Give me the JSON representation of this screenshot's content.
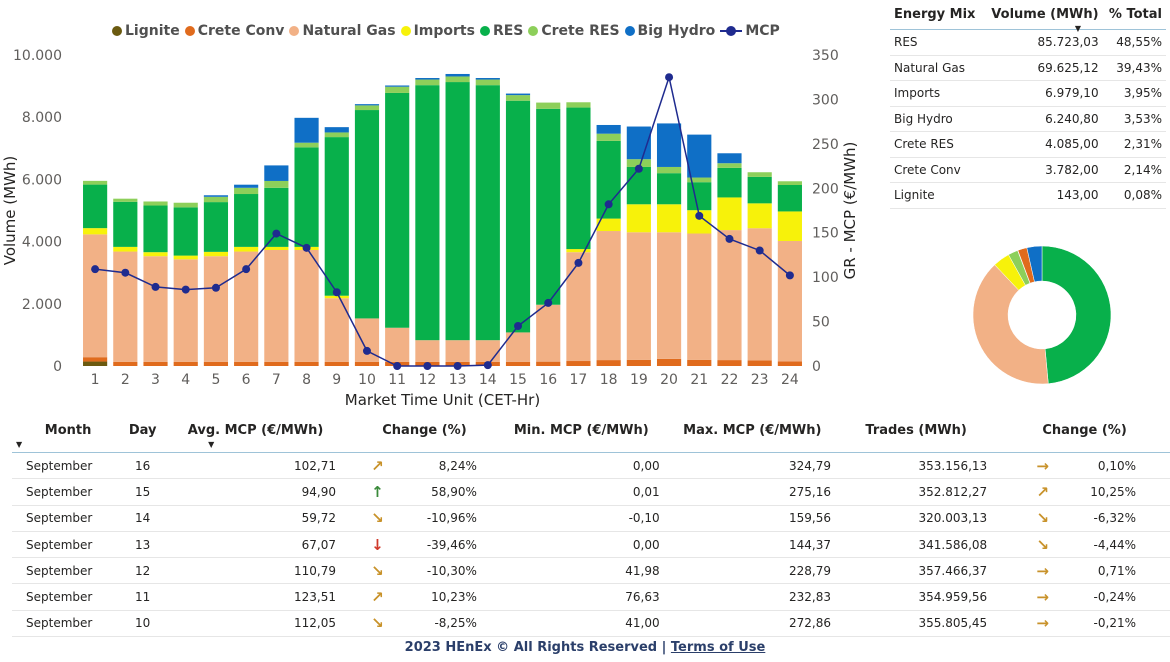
{
  "chart_data": [
    {
      "type": "bar",
      "stacked": true,
      "categories": [
        "1",
        "2",
        "3",
        "4",
        "5",
        "6",
        "7",
        "8",
        "9",
        "10",
        "11",
        "12",
        "13",
        "14",
        "15",
        "16",
        "17",
        "18",
        "19",
        "20",
        "21",
        "22",
        "23",
        "24"
      ],
      "xlabel": "Market Time Unit (CET-Hr)",
      "ylabel": "Volume (MWh)",
      "y2label": "GR - MCP (€/MWh)",
      "ylim": [
        0,
        10000
      ],
      "y2lim": [
        0,
        350
      ],
      "y_ticks": [
        "0",
        "2.000",
        "4.000",
        "6.000",
        "8.000",
        "10.000"
      ],
      "y2_ticks": [
        "0",
        "50",
        "100",
        "150",
        "200",
        "250",
        "300",
        "350"
      ],
      "legend_position": "top",
      "series": [
        {
          "name": "Lignite",
          "color": "#6b5a10",
          "values": [
            143,
            0,
            0,
            0,
            0,
            0,
            0,
            0,
            0,
            0,
            0,
            0,
            0,
            0,
            0,
            0,
            0,
            0,
            0,
            0,
            0,
            0,
            0,
            0
          ]
        },
        {
          "name": "Crete Conv",
          "color": "#e06b1d",
          "values": [
            140,
            130,
            130,
            130,
            130,
            130,
            130,
            130,
            130,
            130,
            130,
            130,
            130,
            130,
            130,
            140,
            160,
            190,
            200,
            230,
            200,
            190,
            180,
            150
          ]
        },
        {
          "name": "Natural Gas",
          "color": "#f2b186",
          "values": [
            3950,
            3550,
            3400,
            3300,
            3400,
            3550,
            3600,
            3600,
            2050,
            1400,
            1100,
            700,
            700,
            700,
            950,
            1830,
            3500,
            4150,
            4100,
            4070,
            4060,
            4180,
            4250,
            3870
          ]
        },
        {
          "name": "Imports",
          "color": "#f7f20a",
          "values": [
            200,
            150,
            130,
            120,
            140,
            150,
            100,
            100,
            80,
            0,
            0,
            0,
            0,
            0,
            0,
            0,
            100,
            400,
            900,
            900,
            750,
            1050,
            800,
            950
          ]
        },
        {
          "name": "RES",
          "color": "#08b04b",
          "values": [
            1400,
            1450,
            1500,
            1550,
            1600,
            1700,
            1900,
            3200,
            5100,
            6700,
            7550,
            8200,
            8300,
            8200,
            7450,
            6300,
            4550,
            2500,
            1200,
            1000,
            900,
            950,
            850,
            850
          ]
        },
        {
          "name": "Crete RES",
          "color": "#8dcf5a",
          "values": [
            120,
            100,
            130,
            150,
            170,
            200,
            220,
            150,
            150,
            150,
            200,
            180,
            180,
            180,
            180,
            200,
            170,
            230,
            250,
            200,
            150,
            150,
            150,
            120
          ]
        },
        {
          "name": "Big Hydro",
          "color": "#0f6fc6",
          "values": [
            0,
            0,
            0,
            0,
            50,
            100,
            500,
            800,
            170,
            40,
            40,
            50,
            80,
            50,
            50,
            0,
            0,
            280,
            1050,
            1400,
            1380,
            320,
            0,
            0
          ]
        }
      ],
      "line": {
        "name": "MCP",
        "color": "#1f2b8f",
        "axis": "y2",
        "values": [
          109,
          105,
          89,
          86,
          88,
          109,
          149,
          133,
          83,
          17,
          0,
          0,
          0,
          1,
          45,
          71,
          116,
          182,
          222,
          325,
          169,
          143,
          130,
          102
        ]
      }
    },
    {
      "type": "pie",
      "donut": true,
      "slices": [
        {
          "label": "RES",
          "value": 85723.03,
          "color": "#08b04b"
        },
        {
          "label": "Natural Gas",
          "value": 69625.12,
          "color": "#f2b186"
        },
        {
          "label": "Imports",
          "value": 6979.1,
          "color": "#f7f20a"
        },
        {
          "label": "Crete RES",
          "value": 4085.0,
          "color": "#8dcf5a"
        },
        {
          "label": "Lignite",
          "value": 143.0,
          "color": "#6b5a10"
        },
        {
          "label": "Crete Conv",
          "value": 3782.0,
          "color": "#e06b1d"
        },
        {
          "label": "Big Hydro",
          "value": 6240.8,
          "color": "#0f6fc6"
        }
      ]
    }
  ],
  "legend": {
    "items": [
      {
        "label": "Lignite",
        "color": "#6b5a10"
      },
      {
        "label": "Crete Conv",
        "color": "#e06b1d"
      },
      {
        "label": "Natural Gas",
        "color": "#f2b186"
      },
      {
        "label": "Imports",
        "color": "#f7f20a"
      },
      {
        "label": "RES",
        "color": "#08b04b"
      },
      {
        "label": "Crete RES",
        "color": "#8dcf5a"
      },
      {
        "label": "Big Hydro",
        "color": "#0f6fc6"
      }
    ],
    "mcp_label": "MCP"
  },
  "mix_table": {
    "headers": {
      "mix": "Energy Mix",
      "volume": "Volume (MWh)",
      "pct": "% Total"
    },
    "rows": [
      {
        "mix": "RES",
        "volume": "85.723,03",
        "pct": "48,55%"
      },
      {
        "mix": "Natural Gas",
        "volume": "69.625,12",
        "pct": "39,43%"
      },
      {
        "mix": "Imports",
        "volume": "6.979,10",
        "pct": "3,95%"
      },
      {
        "mix": "Big Hydro",
        "volume": "6.240,80",
        "pct": "3,53%"
      },
      {
        "mix": "Crete RES",
        "volume": "4.085,00",
        "pct": "2,31%"
      },
      {
        "mix": "Crete Conv",
        "volume": "3.782,00",
        "pct": "2,14%"
      },
      {
        "mix": "Lignite",
        "volume": "143,00",
        "pct": "0,08%"
      }
    ]
  },
  "daily_table": {
    "headers": {
      "month": "Month",
      "day": "Day",
      "avg": "Avg. MCP (€/MWh)",
      "change": "Change (%)",
      "min": "Min. MCP (€/MWh)",
      "max": "Max. MCP (€/MWh)",
      "trades": "Trades (MWh)",
      "change2": "Change (%)"
    },
    "rows": [
      {
        "month": "September",
        "day": "16",
        "avg": "102,71",
        "icon": "arrow-up-right-icon",
        "arrow": "↗",
        "arrow_color": "#c8922a",
        "change": "8,24%",
        "min": "0,00",
        "max": "324,79",
        "trades": "353.156,13",
        "icon2": "arrow-right-icon",
        "arrow2": "→",
        "arrow2_color": "#c8922a",
        "change2": "0,10%"
      },
      {
        "month": "September",
        "day": "15",
        "avg": "94,90",
        "icon": "arrow-up-icon",
        "arrow": "↑",
        "arrow_color": "#3a8a3a",
        "change": "58,90%",
        "min": "0,01",
        "max": "275,16",
        "trades": "352.812,27",
        "icon2": "arrow-up-right-icon",
        "arrow2": "↗",
        "arrow2_color": "#c8922a",
        "change2": "10,25%"
      },
      {
        "month": "September",
        "day": "14",
        "avg": "59,72",
        "icon": "arrow-down-right-icon",
        "arrow": "↘",
        "arrow_color": "#c8922a",
        "change": "-10,96%",
        "min": "-0,10",
        "max": "159,56",
        "trades": "320.003,13",
        "icon2": "arrow-down-right-icon",
        "arrow2": "↘",
        "arrow2_color": "#c8922a",
        "change2": "-6,32%"
      },
      {
        "month": "September",
        "day": "13",
        "avg": "67,07",
        "icon": "arrow-down-icon",
        "arrow": "↓",
        "arrow_color": "#d0392b",
        "change": "-39,46%",
        "min": "0,00",
        "max": "144,37",
        "trades": "341.586,08",
        "icon2": "arrow-down-right-icon",
        "arrow2": "↘",
        "arrow2_color": "#c8922a",
        "change2": "-4,44%"
      },
      {
        "month": "September",
        "day": "12",
        "avg": "110,79",
        "icon": "arrow-down-right-icon",
        "arrow": "↘",
        "arrow_color": "#c8922a",
        "change": "-10,30%",
        "min": "41,98",
        "max": "228,79",
        "trades": "357.466,37",
        "icon2": "arrow-right-icon",
        "arrow2": "→",
        "arrow2_color": "#c8922a",
        "change2": "0,71%"
      },
      {
        "month": "September",
        "day": "11",
        "avg": "123,51",
        "icon": "arrow-up-right-icon",
        "arrow": "↗",
        "arrow_color": "#c8922a",
        "change": "10,23%",
        "min": "76,63",
        "max": "232,83",
        "trades": "354.959,56",
        "icon2": "arrow-right-icon",
        "arrow2": "→",
        "arrow2_color": "#c8922a",
        "change2": "-0,24%"
      },
      {
        "month": "September",
        "day": "10",
        "avg": "112,05",
        "icon": "arrow-down-right-icon",
        "arrow": "↘",
        "arrow_color": "#c8922a",
        "change": "-8,25%",
        "min": "41,00",
        "max": "272,86",
        "trades": "355.805,45",
        "icon2": "arrow-right-icon",
        "arrow2": "→",
        "arrow2_color": "#c8922a",
        "change2": "-0,21%"
      }
    ]
  },
  "footer": {
    "text": "2023 HEnEx © All Rights Reserved | ",
    "link": "Terms of Use"
  }
}
